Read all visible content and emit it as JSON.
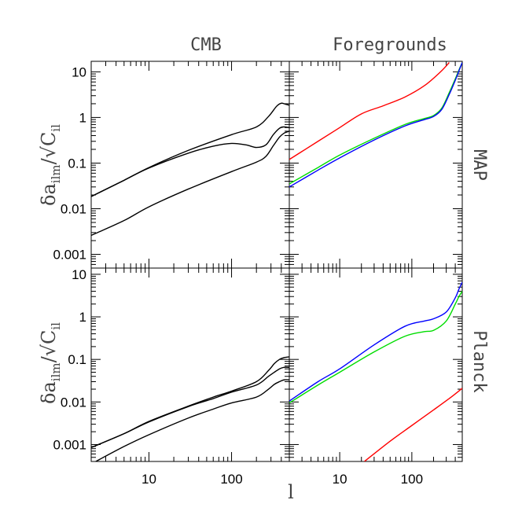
{
  "figure": {
    "column_titles": [
      "CMB",
      "Foregrounds"
    ],
    "row_labels": [
      "MAP",
      "Planck"
    ],
    "ylabel": {
      "main": "δa",
      "sub": "ilm",
      "slash": "/",
      "root": "√",
      "C": "C",
      "csub": "il"
    },
    "xlabel": "l"
  },
  "chart_data": [
    {
      "type": "line",
      "panel": "CMB / MAP",
      "xscale": "log",
      "yscale": "log",
      "xlim": [
        2,
        500
      ],
      "ylim": [
        0.0005,
        17
      ],
      "x_ticks": [
        10,
        100
      ],
      "y_ticks": [
        0.001,
        0.01,
        0.1,
        1,
        10
      ],
      "series": [
        {
          "color": "#000000",
          "points": [
            [
              2,
              0.0185
            ],
            [
              5,
              0.042
            ],
            [
              10,
              0.08
            ],
            [
              30,
              0.19
            ],
            [
              100,
              0.42
            ],
            [
              200,
              0.62
            ],
            [
              280,
              1.05
            ],
            [
              350,
              1.75
            ],
            [
              400,
              2.05
            ],
            [
              450,
              1.95
            ],
            [
              500,
              1.85
            ]
          ]
        },
        {
          "color": "#000000",
          "points": [
            [
              2,
              0.0185
            ],
            [
              5,
              0.042
            ],
            [
              10,
              0.078
            ],
            [
              30,
              0.165
            ],
            [
              60,
              0.235
            ],
            [
              100,
              0.27
            ],
            [
              150,
              0.25
            ],
            [
              200,
              0.22
            ],
            [
              260,
              0.25
            ],
            [
              320,
              0.42
            ],
            [
              380,
              0.58
            ],
            [
              430,
              0.62
            ],
            [
              500,
              0.6
            ]
          ]
        },
        {
          "color": "#000000",
          "points": [
            [
              2,
              0.0026
            ],
            [
              5,
              0.0055
            ],
            [
              10,
              0.011
            ],
            [
              30,
              0.027
            ],
            [
              100,
              0.065
            ],
            [
              200,
              0.105
            ],
            [
              260,
              0.14
            ],
            [
              320,
              0.24
            ],
            [
              380,
              0.37
            ],
            [
              430,
              0.45
            ],
            [
              500,
              0.5
            ]
          ]
        }
      ]
    },
    {
      "type": "line",
      "panel": "Foregrounds / MAP",
      "xscale": "log",
      "yscale": "log",
      "xlim": [
        2,
        500
      ],
      "ylim": [
        0.0005,
        17
      ],
      "x_ticks": [
        10,
        100
      ],
      "y_ticks": [
        0.001,
        0.01,
        0.1,
        1,
        10
      ],
      "series": [
        {
          "color": "#ff0000",
          "points": [
            [
              2,
              0.12
            ],
            [
              5,
              0.3
            ],
            [
              10,
              0.6
            ],
            [
              20,
              1.2
            ],
            [
              40,
              1.8
            ],
            [
              80,
              2.8
            ],
            [
              150,
              5
            ],
            [
              250,
              10
            ],
            [
              330,
              16
            ]
          ]
        },
        {
          "color": "#00dd00",
          "points": [
            [
              2,
              0.035
            ],
            [
              5,
              0.08
            ],
            [
              10,
              0.15
            ],
            [
              30,
              0.35
            ],
            [
              80,
              0.7
            ],
            [
              150,
              0.95
            ],
            [
              200,
              1.1
            ],
            [
              260,
              1.6
            ],
            [
              330,
              3.5
            ],
            [
              400,
              7
            ],
            [
              450,
              11
            ],
            [
              500,
              16
            ]
          ]
        },
        {
          "color": "#0000ff",
          "points": [
            [
              2,
              0.03
            ],
            [
              5,
              0.07
            ],
            [
              10,
              0.13
            ],
            [
              30,
              0.32
            ],
            [
              80,
              0.65
            ],
            [
              150,
              0.9
            ],
            [
              200,
              1.05
            ],
            [
              260,
              1.5
            ],
            [
              330,
              3.2
            ],
            [
              400,
              6.5
            ],
            [
              450,
              10.5
            ],
            [
              500,
              16
            ]
          ]
        }
      ]
    },
    {
      "type": "line",
      "panel": "CMB / Planck",
      "xscale": "log",
      "yscale": "log",
      "xlim": [
        2,
        500
      ],
      "ylim": [
        0.0004,
        14
      ],
      "x_ticks": [
        10,
        100
      ],
      "y_ticks": [
        0.001,
        0.01,
        0.1,
        1,
        10
      ],
      "series": [
        {
          "color": "#000000",
          "points": [
            [
              2,
              0.00085
            ],
            [
              5,
              0.0018
            ],
            [
              10,
              0.0035
            ],
            [
              30,
              0.008
            ],
            [
              60,
              0.013
            ],
            [
              100,
              0.018
            ],
            [
              200,
              0.03
            ],
            [
              280,
              0.055
            ],
            [
              330,
              0.08
            ],
            [
              380,
              0.1
            ],
            [
              430,
              0.11
            ],
            [
              500,
              0.115
            ]
          ]
        },
        {
          "color": "#000000",
          "points": [
            [
              2,
              0.00085
            ],
            [
              5,
              0.0018
            ],
            [
              10,
              0.0034
            ],
            [
              30,
              0.0078
            ],
            [
              60,
              0.012
            ],
            [
              100,
              0.017
            ],
            [
              200,
              0.025
            ],
            [
              280,
              0.04
            ],
            [
              330,
              0.05
            ],
            [
              380,
              0.06
            ],
            [
              430,
              0.065
            ],
            [
              500,
              0.065
            ]
          ]
        },
        {
          "color": "#000000",
          "points": [
            [
              2,
              0.00035
            ],
            [
              5,
              0.0009
            ],
            [
              10,
              0.0017
            ],
            [
              30,
              0.0042
            ],
            [
              60,
              0.0068
            ],
            [
              100,
              0.0095
            ],
            [
              200,
              0.013
            ],
            [
              280,
              0.02
            ],
            [
              330,
              0.026
            ],
            [
              380,
              0.03
            ],
            [
              430,
              0.033
            ],
            [
              500,
              0.033
            ]
          ]
        }
      ]
    },
    {
      "type": "line",
      "panel": "Foregrounds / Planck",
      "xscale": "log",
      "yscale": "log",
      "xlim": [
        2,
        500
      ],
      "ylim": [
        0.0004,
        14
      ],
      "x_ticks": [
        10,
        100
      ],
      "y_ticks": [
        0.001,
        0.01,
        0.1,
        1,
        10
      ],
      "series": [
        {
          "color": "#ff0000",
          "points": [
            [
              22,
              0.0004
            ],
            [
              50,
              0.0012
            ],
            [
              100,
              0.0028
            ],
            [
              200,
              0.0065
            ],
            [
              350,
              0.013
            ],
            [
              500,
              0.021
            ]
          ]
        },
        {
          "color": "#00dd00",
          "points": [
            [
              2,
              0.0095
            ],
            [
              5,
              0.025
            ],
            [
              10,
              0.05
            ],
            [
              30,
              0.15
            ],
            [
              80,
              0.35
            ],
            [
              150,
              0.45
            ],
            [
              200,
              0.48
            ],
            [
              300,
              0.8
            ],
            [
              400,
              2
            ],
            [
              450,
              3
            ],
            [
              500,
              4
            ]
          ]
        },
        {
          "color": "#0000ff",
          "points": [
            [
              2,
              0.0105
            ],
            [
              5,
              0.03
            ],
            [
              10,
              0.06
            ],
            [
              30,
              0.22
            ],
            [
              80,
              0.6
            ],
            [
              150,
              0.8
            ],
            [
              200,
              0.9
            ],
            [
              300,
              1.3
            ],
            [
              400,
              2.8
            ],
            [
              450,
              4.5
            ],
            [
              500,
              6.5
            ]
          ]
        }
      ]
    }
  ]
}
